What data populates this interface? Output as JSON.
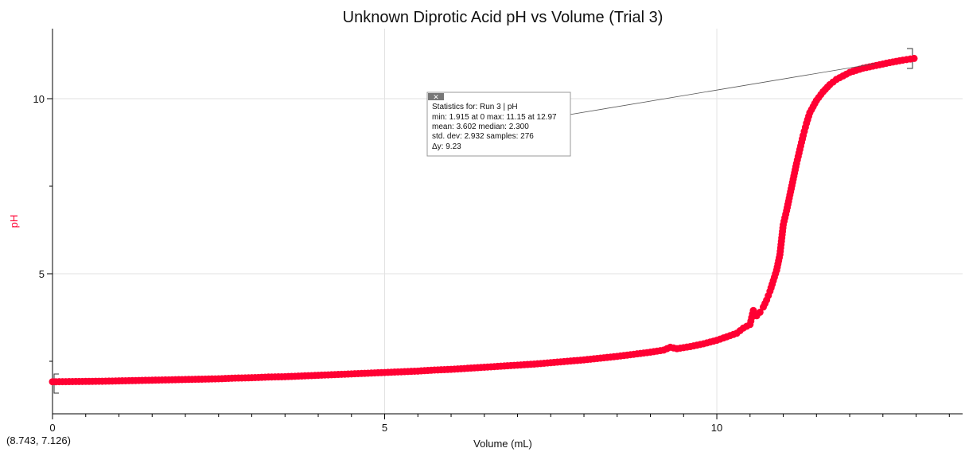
{
  "chart_data": {
    "type": "scatter",
    "title": "Unknown Diprotic Acid pH vs Volume (Trial 3)",
    "xlabel": "Volume (mL)",
    "ylabel": "pH",
    "xlim": [
      0,
      13.7
    ],
    "ylim": [
      1,
      12
    ],
    "x_ticks_labeled": [
      0,
      5,
      10
    ],
    "y_ticks_labeled": [
      5,
      10
    ],
    "grid": true,
    "marker_color": "#ff0033",
    "cursor_readout": "(8.743, 7.126)",
    "series": [
      {
        "name": "Run 3 | pH",
        "points": [
          [
            0,
            1.915
          ],
          [
            0.25,
            1.92
          ],
          [
            0.5,
            1.925
          ],
          [
            0.75,
            1.93
          ],
          [
            1.0,
            1.94
          ],
          [
            1.25,
            1.95
          ],
          [
            1.5,
            1.96
          ],
          [
            1.75,
            1.97
          ],
          [
            2.0,
            1.98
          ],
          [
            2.25,
            1.99
          ],
          [
            2.5,
            2.0
          ],
          [
            2.75,
            2.02
          ],
          [
            3.0,
            2.03
          ],
          [
            3.25,
            2.05
          ],
          [
            3.5,
            2.06
          ],
          [
            3.75,
            2.08
          ],
          [
            4.0,
            2.1
          ],
          [
            4.25,
            2.12
          ],
          [
            4.5,
            2.14
          ],
          [
            4.75,
            2.16
          ],
          [
            5.0,
            2.18
          ],
          [
            5.25,
            2.2
          ],
          [
            5.5,
            2.22
          ],
          [
            5.75,
            2.25
          ],
          [
            6.0,
            2.27
          ],
          [
            6.25,
            2.3
          ],
          [
            6.5,
            2.33
          ],
          [
            6.75,
            2.36
          ],
          [
            7.0,
            2.39
          ],
          [
            7.25,
            2.42
          ],
          [
            7.5,
            2.46
          ],
          [
            7.75,
            2.5
          ],
          [
            8.0,
            2.54
          ],
          [
            8.25,
            2.59
          ],
          [
            8.5,
            2.64
          ],
          [
            8.75,
            2.7
          ],
          [
            9.0,
            2.76
          ],
          [
            9.2,
            2.82
          ],
          [
            9.3,
            2.9
          ],
          [
            9.4,
            2.86
          ],
          [
            9.6,
            2.92
          ],
          [
            9.8,
            3.0
          ],
          [
            10.0,
            3.1
          ],
          [
            10.15,
            3.2
          ],
          [
            10.3,
            3.3
          ],
          [
            10.4,
            3.45
          ],
          [
            10.5,
            3.55
          ],
          [
            10.55,
            3.95
          ],
          [
            10.6,
            3.8
          ],
          [
            10.65,
            3.9
          ],
          [
            10.7,
            4.05
          ],
          [
            10.75,
            4.25
          ],
          [
            10.8,
            4.5
          ],
          [
            10.85,
            4.8
          ],
          [
            10.9,
            5.1
          ],
          [
            10.95,
            5.55
          ],
          [
            11.0,
            6.4
          ],
          [
            11.05,
            6.8
          ],
          [
            11.1,
            7.25
          ],
          [
            11.15,
            7.7
          ],
          [
            11.2,
            8.15
          ],
          [
            11.25,
            8.55
          ],
          [
            11.3,
            8.95
          ],
          [
            11.35,
            9.3
          ],
          [
            11.4,
            9.6
          ],
          [
            11.5,
            9.95
          ],
          [
            11.6,
            10.2
          ],
          [
            11.7,
            10.4
          ],
          [
            11.8,
            10.55
          ],
          [
            11.9,
            10.65
          ],
          [
            12.0,
            10.75
          ],
          [
            12.2,
            10.87
          ],
          [
            12.4,
            10.95
          ],
          [
            12.6,
            11.03
          ],
          [
            12.8,
            11.1
          ],
          [
            12.97,
            11.15
          ]
        ]
      }
    ],
    "stats_box": {
      "lines": [
        "Statistics for: Run 3 | pH",
        "min: 1.915 at 0 max: 11.15 at 12.97",
        "mean: 3.602 median: 2.300",
        "std. dev: 2.932 samples: 276",
        "Δy: 9.23"
      ]
    }
  }
}
